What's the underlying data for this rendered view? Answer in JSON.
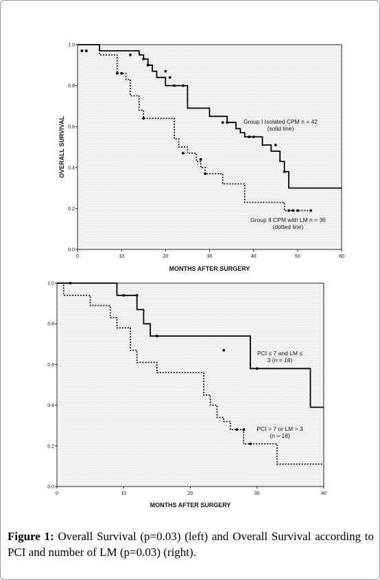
{
  "caption": {
    "label": "Figure 1:",
    "text": "Overall Survival (p=0.03) (left) and Overall Survival according to PCI and number of LM (p=0.03) (right)."
  },
  "chart_data": [
    {
      "type": "line",
      "step": true,
      "xlabel": "MONTHS AFTER SURGERY",
      "ylabel": "OVERALL SURVIVAL",
      "xlim": [
        0,
        60
      ],
      "ylim": [
        0.0,
        1.0
      ],
      "xticks": [
        "0",
        "10",
        "20",
        "30",
        "40",
        "50",
        "60"
      ],
      "yticks": [
        "0.0",
        "0.2",
        "0.4",
        "0.6",
        "0.8",
        "1.0"
      ],
      "series": [
        {
          "name": "Group I Isolated CPM n = 42 (solid line)",
          "label_lines": [
            "Group I Isolated CPM n = 42",
            "(solid line)"
          ],
          "style": "solid",
          "x": [
            0,
            5,
            5,
            14,
            14,
            15,
            15,
            16,
            16,
            17,
            17,
            18,
            18,
            20,
            20,
            25,
            25,
            30,
            30,
            34,
            34,
            36,
            36,
            37,
            37,
            38,
            38,
            42,
            42,
            44,
            44,
            46,
            46,
            47,
            47,
            48,
            48,
            60
          ],
          "y": [
            1.0,
            1.0,
            0.97,
            0.97,
            0.95,
            0.95,
            0.93,
            0.93,
            0.9,
            0.9,
            0.87,
            0.87,
            0.84,
            0.84,
            0.8,
            0.8,
            0.69,
            0.69,
            0.65,
            0.65,
            0.62,
            0.62,
            0.59,
            0.59,
            0.57,
            0.57,
            0.55,
            0.55,
            0.51,
            0.51,
            0.48,
            0.48,
            0.43,
            0.43,
            0.38,
            0.38,
            0.3,
            0.3
          ],
          "censored": [
            [
              2,
              0.97
            ],
            [
              12,
              0.95
            ],
            [
              15,
              0.93
            ],
            [
              16,
              0.9
            ],
            [
              20,
              0.87
            ],
            [
              21,
              0.84
            ],
            [
              22,
              0.8
            ],
            [
              24,
              0.8
            ],
            [
              33,
              0.62
            ],
            [
              34,
              0.62
            ],
            [
              39,
              0.55
            ],
            [
              40,
              0.55
            ],
            [
              45,
              0.51
            ],
            [
              47,
              0.38
            ]
          ]
        },
        {
          "name": "Group II CPM with LM n = 36 (dotted line)",
          "label_lines": [
            "Group II CPM with LM n = 36",
            "(dotted line)"
          ],
          "style": "dotted",
          "x": [
            0,
            5,
            5,
            9,
            9,
            11,
            11,
            12,
            12,
            14,
            14,
            15,
            15,
            22,
            22,
            23,
            23,
            25,
            25,
            27,
            27,
            28,
            28,
            29,
            29,
            33,
            33,
            38,
            38,
            47,
            47,
            53
          ],
          "y": [
            1.0,
            1.0,
            0.95,
            0.95,
            0.86,
            0.86,
            0.83,
            0.83,
            0.75,
            0.75,
            0.68,
            0.68,
            0.64,
            0.64,
            0.54,
            0.54,
            0.5,
            0.5,
            0.47,
            0.47,
            0.43,
            0.43,
            0.4,
            0.4,
            0.37,
            0.37,
            0.32,
            0.32,
            0.23,
            0.23,
            0.19,
            0.19
          ],
          "censored": [
            [
              1,
              0.97
            ],
            [
              2,
              0.97
            ],
            [
              9,
              0.86
            ],
            [
              10,
              0.86
            ],
            [
              15,
              0.64
            ],
            [
              24,
              0.47
            ],
            [
              28,
              0.44
            ],
            [
              29,
              0.37
            ],
            [
              48,
              0.19
            ],
            [
              49,
              0.19
            ],
            [
              50,
              0.19
            ],
            [
              53,
              0.19
            ]
          ]
        }
      ]
    },
    {
      "type": "line",
      "step": true,
      "xlabel": "MONTHS AFTER SURGERY",
      "ylabel": "",
      "xlim": [
        0,
        40
      ],
      "ylim": [
        0.0,
        1.0
      ],
      "xticks": [
        "0",
        "10",
        "20",
        "30",
        "40"
      ],
      "yticks": [
        "0.0",
        "0.2",
        "0.4",
        "0.6",
        "0.8",
        "1.0"
      ],
      "series": [
        {
          "name": "PCI ≤ 7 and LM ≤ 3 (n = 18)",
          "label_lines": [
            "PCI ≤ 7 and LM ≤",
            "3 (n = 18)"
          ],
          "style": "solid",
          "x": [
            0,
            9,
            9,
            12,
            12,
            13,
            13,
            14,
            14,
            29,
            29,
            38,
            38,
            40
          ],
          "y": [
            1.0,
            1.0,
            0.94,
            0.94,
            0.87,
            0.87,
            0.8,
            0.8,
            0.74,
            0.74,
            0.58,
            0.58,
            0.39,
            0.39
          ],
          "censored": [
            [
              2,
              1.0
            ],
            [
              10,
              0.94
            ],
            [
              12,
              0.94
            ],
            [
              15,
              0.74
            ],
            [
              25,
              0.67
            ],
            [
              30,
              0.58
            ]
          ]
        },
        {
          "name": "PCI > 7 or LM > 3 (n = 18)",
          "label_lines": [
            "PCI > 7 or LM > 3",
            "(n = 18)"
          ],
          "style": "dotted",
          "x": [
            0,
            1,
            1,
            5,
            5,
            8,
            8,
            9,
            9,
            11,
            11,
            12,
            12,
            15,
            15,
            22,
            22,
            23,
            23,
            24,
            24,
            25,
            25,
            26,
            26,
            28,
            28,
            29,
            29,
            33,
            33,
            40
          ],
          "y": [
            1.0,
            1.0,
            0.94,
            0.94,
            0.89,
            0.89,
            0.83,
            0.83,
            0.78,
            0.78,
            0.67,
            0.67,
            0.61,
            0.61,
            0.56,
            0.56,
            0.45,
            0.45,
            0.4,
            0.4,
            0.34,
            0.34,
            0.32,
            0.32,
            0.28,
            0.28,
            0.21,
            0.21,
            0.21,
            0.21,
            0.11,
            0.11
          ],
          "censored": [
            [
              27,
              0.28
            ],
            [
              28,
              0.28
            ],
            [
              29,
              0.21
            ]
          ]
        }
      ]
    }
  ]
}
